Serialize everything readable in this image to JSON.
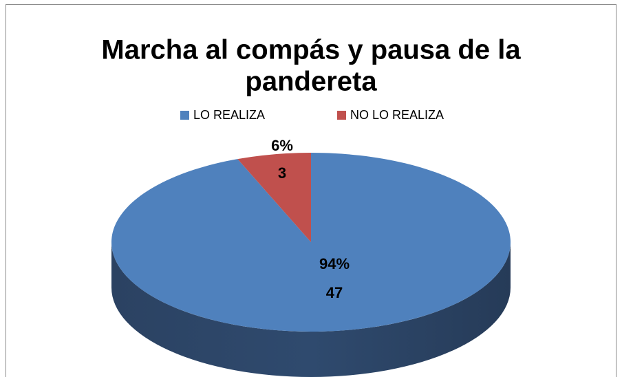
{
  "chart_data": {
    "type": "pie3d",
    "title_lines": [
      "Marcha al compás y pausa de la",
      "pandereta"
    ],
    "categories": [
      "LO REALIZA",
      "NO LO REALIZA"
    ],
    "values": [
      47,
      3
    ],
    "percentages": [
      94,
      6
    ],
    "percentage_labels": [
      "94%",
      "6%"
    ],
    "colors": [
      "#4f81bd",
      "#c0504d"
    ],
    "legend": "top"
  }
}
